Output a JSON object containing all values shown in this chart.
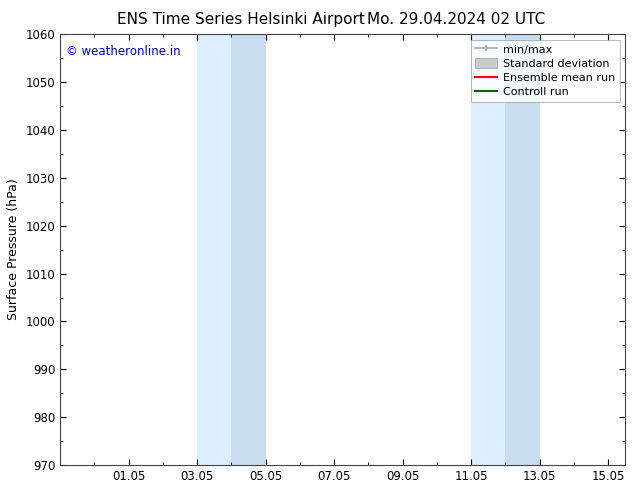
{
  "title_left": "ENS Time Series Helsinki Airport",
  "title_right": "Mo. 29.04.2024 02 UTC",
  "ylabel": "Surface Pressure (hPa)",
  "ylim": [
    970,
    1060
  ],
  "yticks": [
    970,
    980,
    990,
    1000,
    1010,
    1020,
    1030,
    1040,
    1050,
    1060
  ],
  "xlim": [
    0.0,
    16.5
  ],
  "xtick_labels": [
    "01.05",
    "03.05",
    "05.05",
    "07.05",
    "09.05",
    "11.05",
    "13.05",
    "15.05"
  ],
  "xtick_positions": [
    2,
    4,
    6,
    8,
    10,
    12,
    14,
    16
  ],
  "shaded_bands": [
    {
      "x_start": 4.0,
      "x_end": 5.0,
      "color": "#ddeeff"
    },
    {
      "x_start": 5.0,
      "x_end": 6.0,
      "color": "#c8ddf0"
    },
    {
      "x_start": 12.0,
      "x_end": 13.0,
      "color": "#ddeeff"
    },
    {
      "x_start": 13.0,
      "x_end": 14.0,
      "color": "#c8ddf0"
    }
  ],
  "watermark_text": "© weatheronline.in",
  "watermark_color": "#0000cc",
  "bg_color": "white",
  "spine_color": "#444444",
  "title_fontsize": 11,
  "axis_label_fontsize": 9,
  "tick_fontsize": 8.5,
  "legend_fontsize": 8
}
